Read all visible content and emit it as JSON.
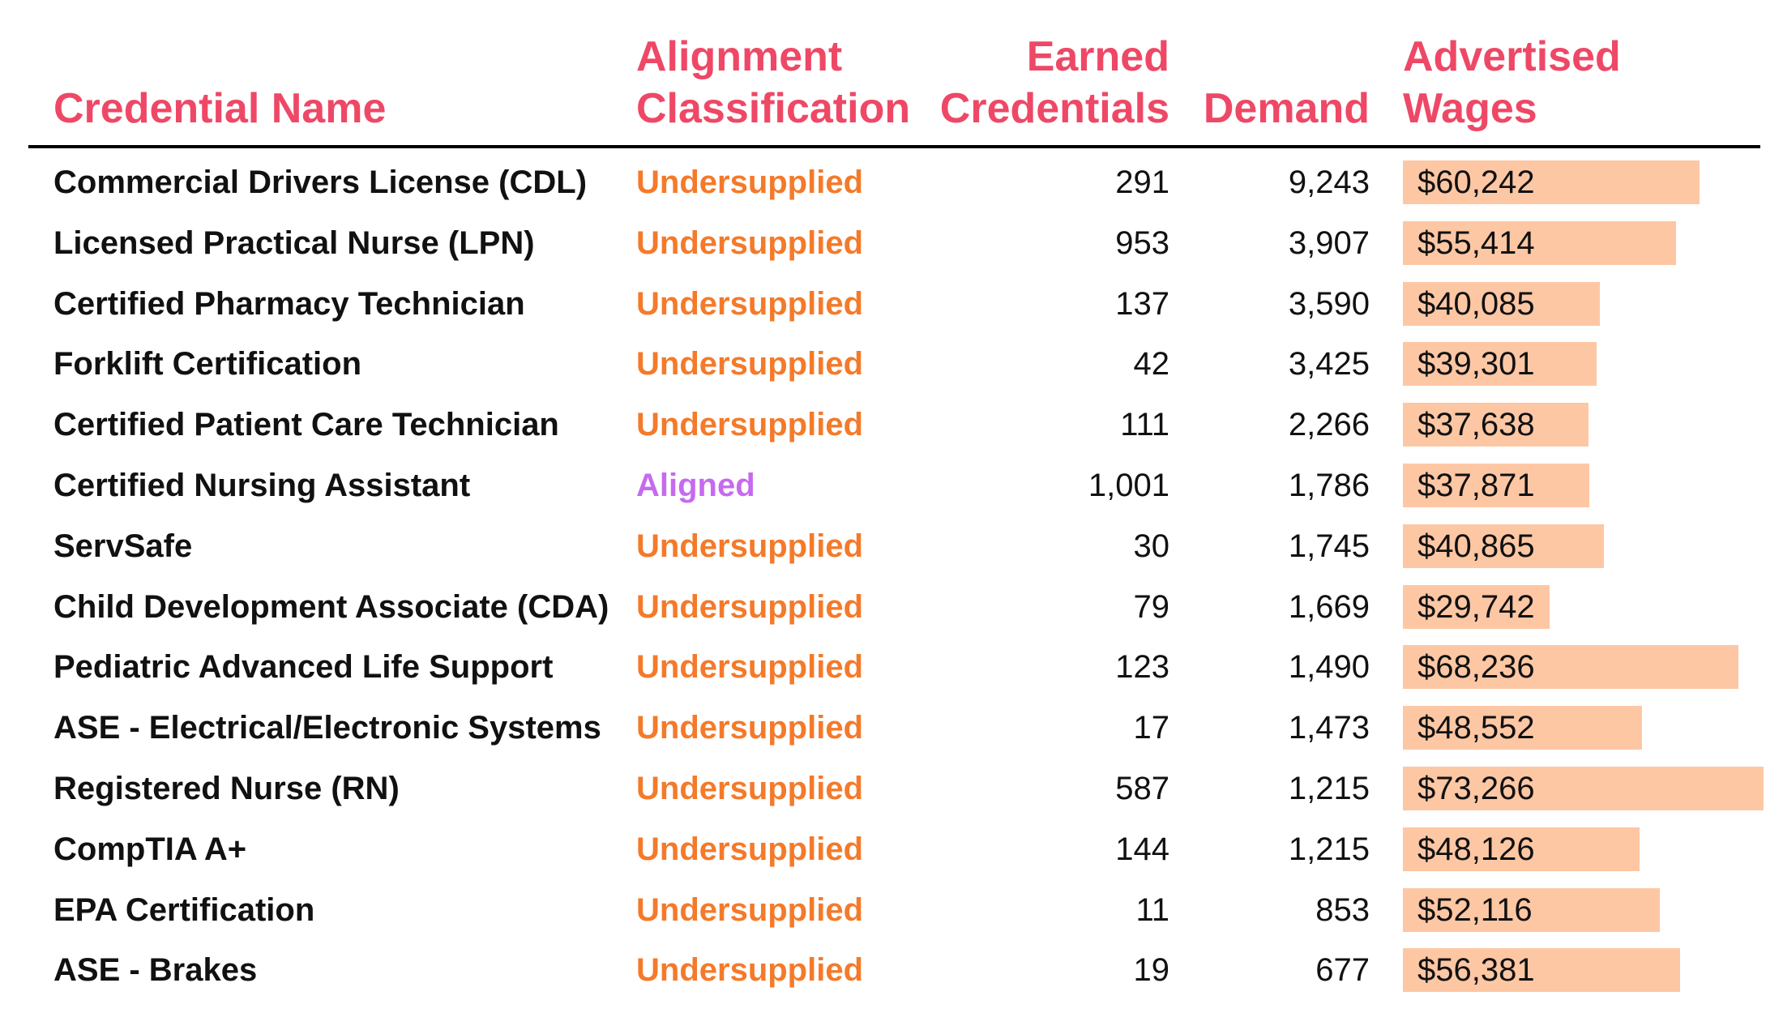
{
  "colors": {
    "header": "#ee4866",
    "undersupplied": "#f47a2a",
    "aligned": "#c66af0",
    "wage_bar": "#fec7a4",
    "text": "#111111"
  },
  "header": {
    "credential_name": "Credential Name",
    "alignment_line1": "Alignment",
    "alignment_line2": "Classification",
    "earned_line1": "Earned",
    "earned_line2": "Credentials",
    "demand": "Demand",
    "wages_line1": "Advertised",
    "wages_line2": "Wages"
  },
  "chart_data": {
    "type": "table",
    "columns": [
      "Credential Name",
      "Alignment Classification",
      "Earned Credentials",
      "Demand",
      "Advertised Wages"
    ],
    "wage_scale_max": 73266,
    "rows": [
      {
        "name": "Commercial Drivers License (CDL)",
        "classification": "Undersupplied",
        "earned": "291",
        "demand": "9,243",
        "wage_label": "$60,242",
        "wage": 60242
      },
      {
        "name": "Licensed Practical Nurse (LPN)",
        "classification": "Undersupplied",
        "earned": "953",
        "demand": "3,907",
        "wage_label": "$55,414",
        "wage": 55414
      },
      {
        "name": "Certified Pharmacy Technician",
        "classification": "Undersupplied",
        "earned": "137",
        "demand": "3,590",
        "wage_label": "$40,085",
        "wage": 40085
      },
      {
        "name": "Forklift Certification",
        "classification": "Undersupplied",
        "earned": "42",
        "demand": "3,425",
        "wage_label": "$39,301",
        "wage": 39301
      },
      {
        "name": "Certified Patient Care Technician",
        "classification": "Undersupplied",
        "earned": "111",
        "demand": "2,266",
        "wage_label": "$37,638",
        "wage": 37638
      },
      {
        "name": "Certified Nursing Assistant",
        "classification": "Aligned",
        "earned": "1,001",
        "demand": "1,786",
        "wage_label": "$37,871",
        "wage": 37871
      },
      {
        "name": "ServSafe",
        "classification": "Undersupplied",
        "earned": "30",
        "demand": "1,745",
        "wage_label": "$40,865",
        "wage": 40865
      },
      {
        "name": "Child Development Associate (CDA)",
        "classification": "Undersupplied",
        "earned": "79",
        "demand": "1,669",
        "wage_label": "$29,742",
        "wage": 29742
      },
      {
        "name": "Pediatric Advanced Life Support",
        "classification": "Undersupplied",
        "earned": "123",
        "demand": "1,490",
        "wage_label": "$68,236",
        "wage": 68236
      },
      {
        "name": "ASE - Electrical/Electronic Systems",
        "classification": "Undersupplied",
        "earned": "17",
        "demand": "1,473",
        "wage_label": "$48,552",
        "wage": 48552
      },
      {
        "name": "Registered Nurse (RN)",
        "classification": "Undersupplied",
        "earned": "587",
        "demand": "1,215",
        "wage_label": "$73,266",
        "wage": 73266
      },
      {
        "name": "CompTIA A+",
        "classification": "Undersupplied",
        "earned": "144",
        "demand": "1,215",
        "wage_label": "$48,126",
        "wage": 48126
      },
      {
        "name": "EPA Certification",
        "classification": "Undersupplied",
        "earned": "11",
        "demand": "853",
        "wage_label": "$52,116",
        "wage": 52116
      },
      {
        "name": "ASE - Brakes",
        "classification": "Undersupplied",
        "earned": "19",
        "demand": "677",
        "wage_label": "$56,381",
        "wage": 56381
      }
    ]
  }
}
